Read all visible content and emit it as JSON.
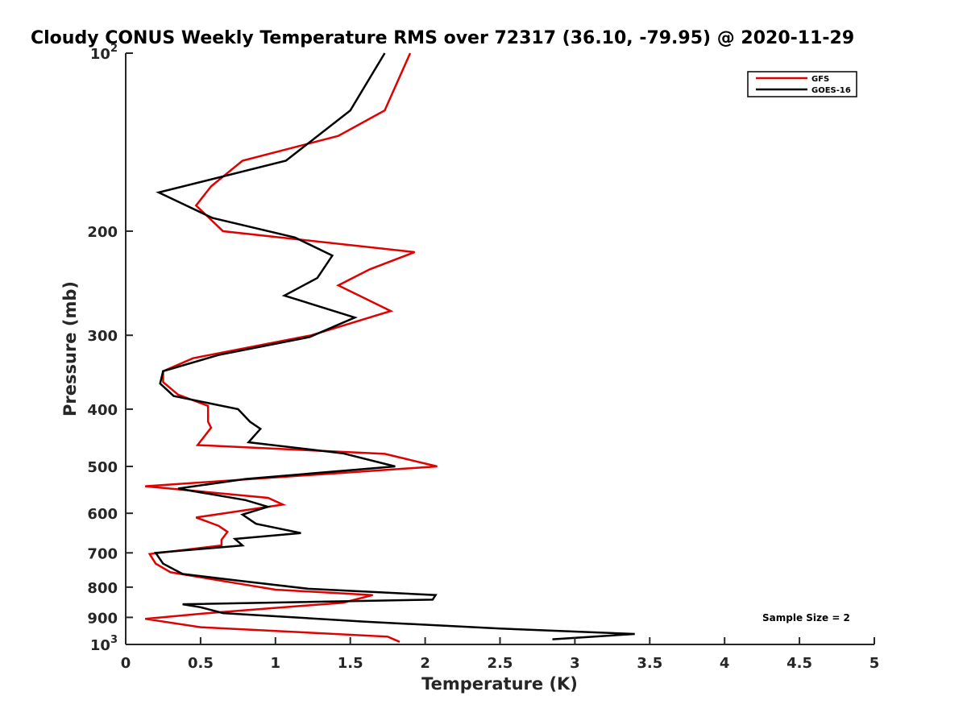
{
  "chart_data": {
    "type": "line",
    "title": "Cloudy CONUS Weekly Temperature RMS over 72317 (36.10, -79.95) @ 2020-11-29",
    "xlabel": "Temperature (K)",
    "ylabel": "Pressure (mb)",
    "xlim": [
      0,
      5
    ],
    "ylim": [
      100,
      1000
    ],
    "y_scale": "log",
    "y_reversed": true,
    "grid": false,
    "legend_position": "top-right",
    "x_ticks": [
      "0",
      "0.5",
      "1",
      "1.5",
      "2",
      "2.5",
      "3",
      "3.5",
      "4",
      "4.5",
      "5"
    ],
    "x_tick_values": [
      0,
      0.5,
      1,
      1.5,
      2,
      2.5,
      3,
      3.5,
      4,
      4.5,
      5
    ],
    "y_ticks": [
      {
        "value": 100,
        "base": "10",
        "exp": "2"
      },
      {
        "value": 200,
        "label": "200"
      },
      {
        "value": 300,
        "label": "300"
      },
      {
        "value": 400,
        "label": "400"
      },
      {
        "value": 500,
        "label": "500"
      },
      {
        "value": 600,
        "label": "600"
      },
      {
        "value": 700,
        "label": "700"
      },
      {
        "value": 800,
        "label": "800"
      },
      {
        "value": 900,
        "label": "900"
      },
      {
        "value": 1000,
        "base": "10",
        "exp": "3"
      }
    ],
    "annotation": "Sample Size = 2",
    "series": [
      {
        "name": "GFS",
        "color": "#e00000",
        "points": [
          [
            1.9,
            100
          ],
          [
            1.73,
            125
          ],
          [
            1.42,
            138
          ],
          [
            0.78,
            152
          ],
          [
            0.57,
            168
          ],
          [
            0.47,
            181
          ],
          [
            0.65,
            200
          ],
          [
            1.93,
            217
          ],
          [
            1.63,
            232
          ],
          [
            1.42,
            247
          ],
          [
            1.77,
            273
          ],
          [
            1.24,
            300
          ],
          [
            0.45,
            328
          ],
          [
            0.25,
            345
          ],
          [
            0.25,
            360
          ],
          [
            0.35,
            378
          ],
          [
            0.55,
            395
          ],
          [
            0.55,
            420
          ],
          [
            0.57,
            430
          ],
          [
            0.48,
            460
          ],
          [
            1.73,
            476
          ],
          [
            2.08,
            500
          ],
          [
            0.13,
            540
          ],
          [
            0.95,
            565
          ],
          [
            1.05,
            580
          ],
          [
            0.47,
            610
          ],
          [
            0.62,
            630
          ],
          [
            0.68,
            645
          ],
          [
            0.64,
            665
          ],
          [
            0.64,
            680
          ],
          [
            0.16,
            703
          ],
          [
            0.2,
            730
          ],
          [
            0.3,
            755
          ],
          [
            0.7,
            785
          ],
          [
            1.0,
            808
          ],
          [
            1.65,
            825
          ],
          [
            1.45,
            850
          ],
          [
            0.55,
            885
          ],
          [
            0.13,
            905
          ],
          [
            0.5,
            935
          ],
          [
            1.75,
            970
          ],
          [
            1.83,
            990
          ]
        ]
      },
      {
        "name": "GOES-16",
        "color": "#000000",
        "points": [
          [
            1.73,
            100
          ],
          [
            1.5,
            125
          ],
          [
            1.07,
            152
          ],
          [
            0.22,
            172
          ],
          [
            0.58,
            190
          ],
          [
            1.13,
            205
          ],
          [
            1.38,
            220
          ],
          [
            1.28,
            240
          ],
          [
            1.06,
            257
          ],
          [
            1.53,
            280
          ],
          [
            1.23,
            302
          ],
          [
            0.62,
            324
          ],
          [
            0.25,
            345
          ],
          [
            0.23,
            362
          ],
          [
            0.32,
            380
          ],
          [
            0.75,
            400
          ],
          [
            0.83,
            420
          ],
          [
            0.9,
            432
          ],
          [
            0.82,
            455
          ],
          [
            1.45,
            475
          ],
          [
            1.8,
            500
          ],
          [
            0.8,
            525
          ],
          [
            0.35,
            545
          ],
          [
            0.8,
            570
          ],
          [
            0.95,
            585
          ],
          [
            0.78,
            603
          ],
          [
            0.87,
            625
          ],
          [
            1.17,
            648
          ],
          [
            0.73,
            663
          ],
          [
            0.78,
            680
          ],
          [
            0.2,
            700
          ],
          [
            0.25,
            730
          ],
          [
            0.38,
            760
          ],
          [
            0.75,
            780
          ],
          [
            1.22,
            805
          ],
          [
            2.07,
            825
          ],
          [
            2.05,
            840
          ],
          [
            0.38,
            855
          ],
          [
            0.5,
            865
          ],
          [
            0.65,
            885
          ],
          [
            1.6,
            915
          ],
          [
            2.5,
            940
          ],
          [
            3.4,
            960
          ],
          [
            2.85,
            980
          ]
        ]
      }
    ]
  }
}
